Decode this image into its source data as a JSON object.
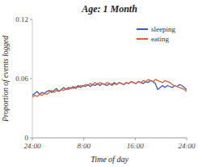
{
  "chart_data": {
    "type": "line",
    "title": "Age: 1 Month",
    "xlabel": "Time of day",
    "ylabel": "Proportion of events logged",
    "x": [
      0,
      0.375,
      0.75,
      1.125,
      1.5,
      1.875,
      2.25,
      2.625,
      3,
      3.375,
      3.75,
      4.125,
      4.5,
      4.875,
      5.25,
      5.625,
      6,
      6.375,
      6.75,
      7.125,
      7.5,
      7.875,
      8.25,
      8.625,
      9,
      9.375,
      9.75,
      10.125,
      10.5,
      10.875,
      11.25,
      11.625,
      12,
      12.375,
      12.75,
      13.125,
      13.5,
      13.875,
      14.25,
      14.625,
      15,
      15.375,
      15.75,
      16.125,
      16.5,
      16.875,
      17.25,
      17.625,
      18,
      18.375,
      18.75,
      19.125,
      19.5,
      19.875,
      20.25,
      20.625,
      21,
      21.375,
      21.75,
      22.125,
      22.5,
      22.875,
      23.25,
      23.625,
      24
    ],
    "series": [
      {
        "name": "sleeping",
        "color": "#3B5BA5",
        "values": [
          0.043,
          0.045,
          0.047,
          0.044,
          0.046,
          0.045,
          0.047,
          0.048,
          0.046,
          0.048,
          0.05,
          0.047,
          0.049,
          0.051,
          0.049,
          0.051,
          0.05,
          0.052,
          0.05,
          0.053,
          0.051,
          0.053,
          0.052,
          0.054,
          0.052,
          0.054,
          0.053,
          0.055,
          0.053,
          0.055,
          0.054,
          0.053,
          0.055,
          0.054,
          0.056,
          0.054,
          0.056,
          0.055,
          0.054,
          0.056,
          0.055,
          0.057,
          0.056,
          0.055,
          0.057,
          0.056,
          0.055,
          0.057,
          0.056,
          0.058,
          0.057,
          0.055,
          0.049,
          0.051,
          0.053,
          0.051,
          0.053,
          0.052,
          0.051,
          0.053,
          0.052,
          0.054,
          0.053,
          0.051,
          0.049
        ]
      },
      {
        "name": "eating",
        "color": "#D95F3B",
        "values": [
          0.041,
          0.043,
          0.042,
          0.044,
          0.043,
          0.045,
          0.044,
          0.046,
          0.048,
          0.046,
          0.048,
          0.047,
          0.049,
          0.048,
          0.05,
          0.049,
          0.051,
          0.05,
          0.052,
          0.051,
          0.053,
          0.052,
          0.054,
          0.053,
          0.055,
          0.054,
          0.056,
          0.054,
          0.056,
          0.055,
          0.054,
          0.056,
          0.055,
          0.053,
          0.055,
          0.054,
          0.056,
          0.055,
          0.054,
          0.056,
          0.055,
          0.057,
          0.056,
          0.055,
          0.057,
          0.056,
          0.058,
          0.057,
          0.059,
          0.058,
          0.057,
          0.059,
          0.058,
          0.057,
          0.056,
          0.058,
          0.057,
          0.056,
          0.054,
          0.053,
          0.052,
          0.051,
          0.05,
          0.049,
          0.047
        ]
      }
    ],
    "xlim": [
      0,
      24
    ],
    "xticks": [
      {
        "value": 0,
        "label": "24:00"
      },
      {
        "value": 8,
        "label": "8:00"
      },
      {
        "value": 16,
        "label": "16:00"
      },
      {
        "value": 24,
        "label": "24:00"
      }
    ],
    "ylim": [
      0,
      0.12
    ],
    "yticks": [
      0,
      0.06,
      0.12
    ],
    "grid": false,
    "legend": "upper right"
  }
}
